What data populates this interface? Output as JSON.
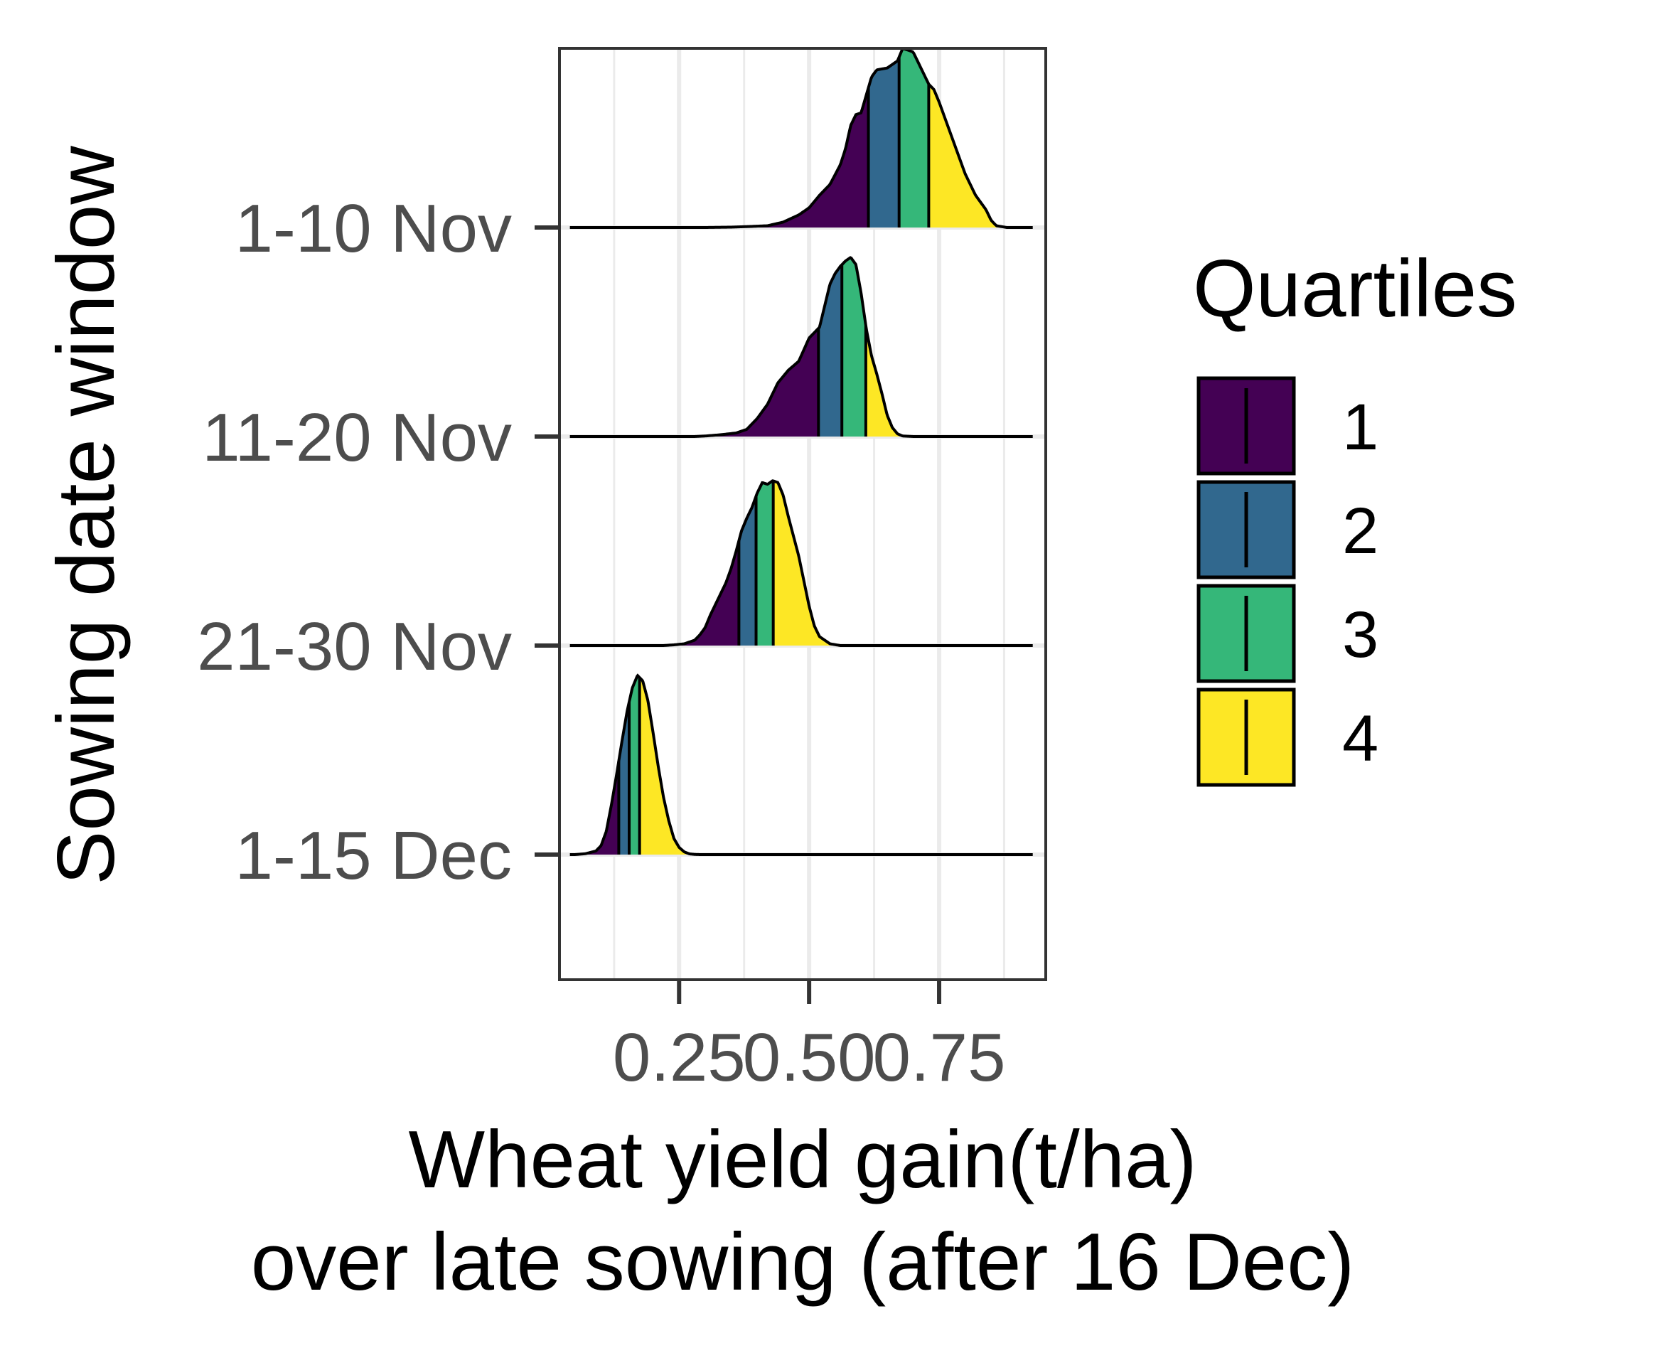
{
  "chart_data": {
    "type": "ridgeline",
    "xlabel_line1": "Wheat yield gain(t/ha)",
    "xlabel_line2": "over late sowing (after 16 Dec)",
    "ylabel": "Sowing date window",
    "x_ticks": [
      "0.25",
      "0.50",
      "0.75"
    ],
    "x_tick_values": [
      0.25,
      0.5,
      0.75
    ],
    "xlim": [
      0.02,
      0.955
    ],
    "grid": true,
    "categories": [
      "1-10 Nov",
      "11-20 Nov",
      "21-30 Nov",
      "1-15 Dec"
    ],
    "distributions": [
      {
        "category": "1-10 Nov",
        "x_range": [
          0.04,
          0.93
        ],
        "density_x": [
          0.3,
          0.35,
          0.38,
          0.42,
          0.45,
          0.48,
          0.5,
          0.52,
          0.54,
          0.56,
          0.57,
          0.58,
          0.59,
          0.6,
          0.61,
          0.62,
          0.63,
          0.65,
          0.66,
          0.67,
          0.68,
          0.69,
          0.7,
          0.71,
          0.72,
          0.73,
          0.74,
          0.75,
          0.76,
          0.78,
          0.8,
          0.82,
          0.84,
          0.85,
          0.86,
          0.88
        ],
        "density_y": [
          0,
          0.002,
          0.005,
          0.01,
          0.03,
          0.07,
          0.11,
          0.18,
          0.24,
          0.35,
          0.44,
          0.57,
          0.63,
          0.64,
          0.74,
          0.84,
          0.88,
          0.89,
          0.91,
          0.93,
          1.0,
          0.99,
          0.98,
          0.92,
          0.86,
          0.8,
          0.77,
          0.7,
          0.62,
          0.46,
          0.3,
          0.18,
          0.1,
          0.04,
          0.01,
          0
        ],
        "quartiles": [
          0.614,
          0.673,
          0.73
        ]
      },
      {
        "category": "11-20 Nov",
        "x_range": [
          0.04,
          0.93
        ],
        "density_x": [
          0.28,
          0.3,
          0.33,
          0.36,
          0.38,
          0.4,
          0.42,
          0.44,
          0.46,
          0.48,
          0.5,
          0.52,
          0.53,
          0.54,
          0.55,
          0.56,
          0.57,
          0.58,
          0.59,
          0.6,
          0.61,
          0.62,
          0.63,
          0.64,
          0.65,
          0.66,
          0.67,
          0.68,
          0.7
        ],
        "density_y": [
          0,
          0.003,
          0.01,
          0.02,
          0.04,
          0.1,
          0.18,
          0.3,
          0.37,
          0.42,
          0.55,
          0.61,
          0.73,
          0.85,
          0.91,
          0.95,
          0.98,
          1.0,
          0.96,
          0.8,
          0.6,
          0.45,
          0.35,
          0.24,
          0.12,
          0.05,
          0.015,
          0.003,
          0
        ],
        "quartiles": [
          0.518,
          0.563,
          0.609
        ]
      },
      {
        "category": "21-30 Nov",
        "x_range": [
          0.04,
          0.93
        ],
        "density_x": [
          0.22,
          0.24,
          0.26,
          0.28,
          0.29,
          0.3,
          0.31,
          0.32,
          0.33,
          0.34,
          0.35,
          0.36,
          0.37,
          0.38,
          0.39,
          0.4,
          0.41,
          0.42,
          0.43,
          0.44,
          0.45,
          0.46,
          0.47,
          0.48,
          0.49,
          0.5,
          0.51,
          0.52,
          0.54,
          0.56
        ],
        "density_y": [
          0,
          0.004,
          0.01,
          0.03,
          0.06,
          0.1,
          0.17,
          0.23,
          0.29,
          0.35,
          0.43,
          0.53,
          0.64,
          0.71,
          0.77,
          0.85,
          0.91,
          0.9,
          0.92,
          0.91,
          0.84,
          0.72,
          0.61,
          0.5,
          0.36,
          0.22,
          0.11,
          0.05,
          0.01,
          0
        ],
        "quartiles": [
          0.365,
          0.398,
          0.431
        ]
      },
      {
        "category": "1-15 Dec",
        "x_range": [
          0.04,
          0.93
        ],
        "density_x": [
          0.05,
          0.07,
          0.09,
          0.1,
          0.11,
          0.12,
          0.13,
          0.14,
          0.15,
          0.16,
          0.17,
          0.18,
          0.19,
          0.2,
          0.21,
          0.22,
          0.23,
          0.24,
          0.25,
          0.26,
          0.27,
          0.28,
          0.29,
          0.3,
          0.32
        ],
        "density_y": [
          0,
          0.005,
          0.02,
          0.05,
          0.13,
          0.28,
          0.45,
          0.63,
          0.8,
          0.93,
          1.0,
          0.97,
          0.86,
          0.68,
          0.49,
          0.32,
          0.19,
          0.09,
          0.04,
          0.015,
          0.004,
          0.001,
          0,
          0,
          0
        ],
        "quartiles": [
          0.134,
          0.154,
          0.174
        ]
      }
    ],
    "legend": {
      "title": "Quartiles",
      "position": "right",
      "items": [
        {
          "label": "1",
          "color": "#440154"
        },
        {
          "label": "2",
          "color": "#31688E"
        },
        {
          "label": "3",
          "color": "#35B779"
        },
        {
          "label": "4",
          "color": "#FDE725"
        }
      ]
    }
  }
}
